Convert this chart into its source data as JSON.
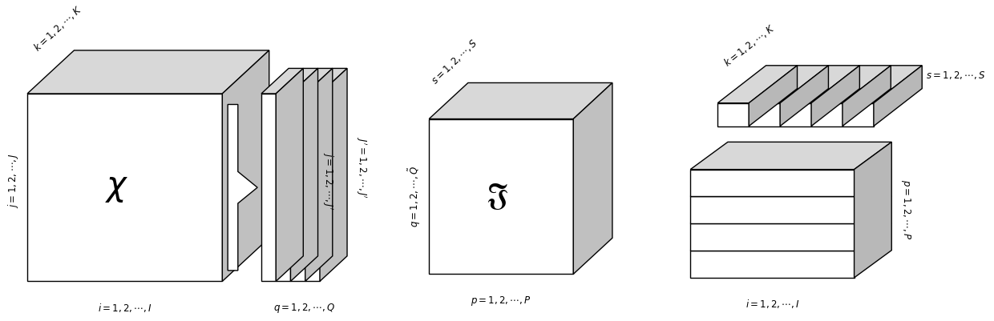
{
  "bg_color": "#ffffff",
  "line_color": "#000000",
  "top_color": "#d8d8d8",
  "side_color": "#b8b8b8",
  "face_color": "#ffffff",
  "fig_width": 12.4,
  "fig_height": 4.01,
  "dpi": 100,
  "lw": 1.0
}
